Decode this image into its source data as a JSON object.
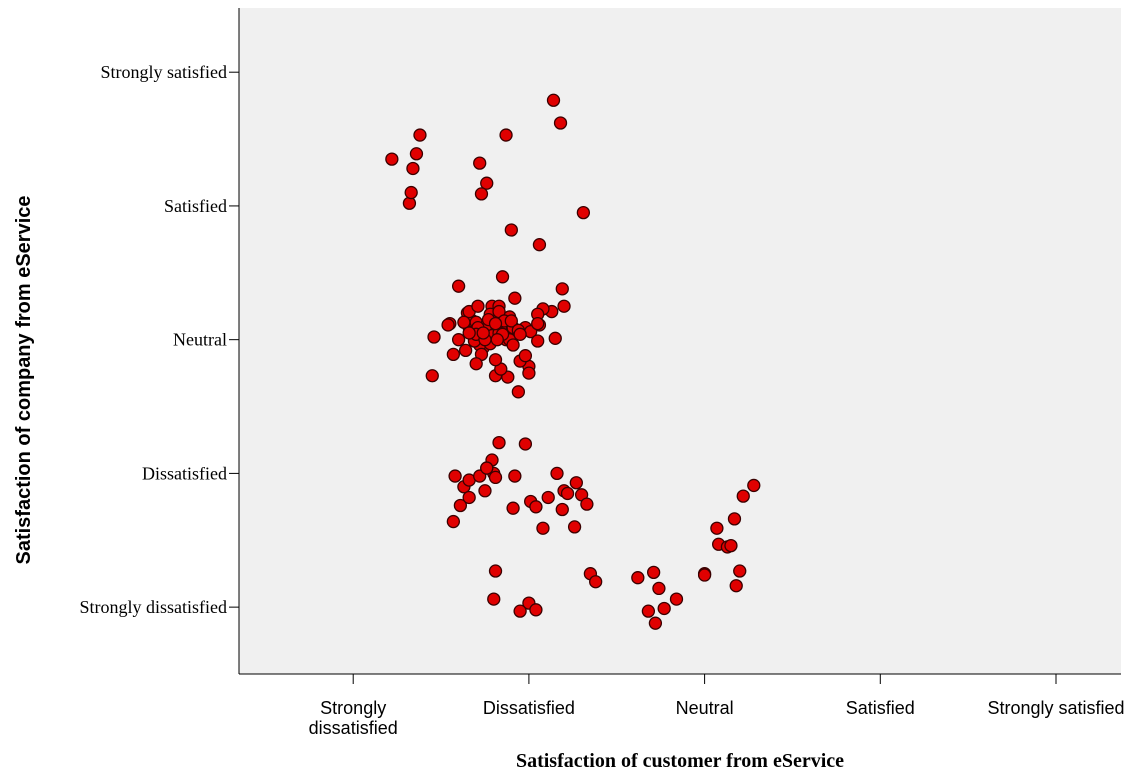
{
  "chart_data": {
    "type": "scatter",
    "title": "",
    "xlabel": "Satisfaction of customer from eService",
    "ylabel": "Satisfaction of company from eService",
    "x_categories": [
      "Strongly dissatisfied",
      "Dissatisfied",
      "Neutral",
      "Satisfied",
      "Strongly satisfied"
    ],
    "x_tick_labels": [
      [
        "Strongly",
        "dissatisfied"
      ],
      [
        "Dissatisfied"
      ],
      [
        "Neutral"
      ],
      [
        "Satisfied"
      ],
      [
        "Strongly satisfied"
      ]
    ],
    "y_categories": [
      "Strongly dissatisfied",
      "Dissatisfied",
      "Neutral",
      "Satisfied",
      "Strongly satisfied"
    ],
    "xlim": [
      0.35,
      5.37
    ],
    "ylim": [
      0.5,
      5.48
    ],
    "grid": false,
    "legend": "none",
    "jitter": true,
    "marker": {
      "color": "#e00000",
      "edge": "#3a0000",
      "shape": "circle"
    },
    "plot_background": "#f0f0f0",
    "points": [
      [
        1.87,
        4.53
      ],
      [
        2.14,
        4.79
      ],
      [
        1.22,
        4.35
      ],
      [
        1.32,
        4.02
      ],
      [
        1.33,
        4.1
      ],
      [
        1.34,
        4.28
      ],
      [
        1.38,
        4.53
      ],
      [
        1.36,
        4.39
      ],
      [
        1.72,
        4.32
      ],
      [
        1.76,
        4.17
      ],
      [
        1.73,
        4.09
      ],
      [
        2.31,
        3.95
      ],
      [
        2.18,
        4.62
      ],
      [
        2.06,
        3.71
      ],
      [
        1.9,
        3.82
      ],
      [
        1.79,
        3.25
      ],
      [
        1.6,
        3.4
      ],
      [
        1.92,
        3.31
      ],
      [
        2.19,
        3.38
      ],
      [
        2.2,
        3.25
      ],
      [
        1.98,
        3.09
      ],
      [
        1.85,
        3.47
      ],
      [
        1.8,
        3.19
      ],
      [
        2.06,
        3.11
      ],
      [
        2.13,
        3.21
      ],
      [
        2.01,
        3.06
      ],
      [
        2.0,
        2.8
      ],
      [
        1.89,
        3.05
      ],
      [
        1.94,
        2.61
      ],
      [
        2.15,
        3.01
      ],
      [
        1.46,
        3.02
      ],
      [
        1.55,
        3.12
      ],
      [
        2.08,
        3.23
      ],
      [
        2.05,
        3.19
      ],
      [
        2.05,
        2.99
      ],
      [
        2.0,
        2.75
      ],
      [
        1.95,
        2.84
      ],
      [
        1.66,
        3.09
      ],
      [
        1.74,
        2.94
      ],
      [
        1.83,
        3.25
      ],
      [
        1.65,
        3.2
      ],
      [
        1.78,
        3.19
      ],
      [
        1.6,
        3.0
      ],
      [
        1.68,
        3.14
      ],
      [
        1.66,
        3.21
      ],
      [
        1.89,
        3.17
      ],
      [
        1.8,
        3.03
      ],
      [
        1.87,
        3.0
      ],
      [
        1.83,
        3.21
      ],
      [
        1.84,
        3.1
      ],
      [
        1.7,
        3.13
      ],
      [
        1.77,
        3.02
      ],
      [
        1.72,
        2.96
      ],
      [
        1.92,
        3.04
      ],
      [
        1.81,
        2.73
      ],
      [
        1.64,
        2.92
      ],
      [
        1.73,
        2.89
      ],
      [
        1.79,
        3.03
      ],
      [
        1.76,
        3.11
      ],
      [
        1.91,
        3.09
      ],
      [
        1.86,
        3.14
      ],
      [
        1.71,
        3.25
      ],
      [
        1.73,
        3.05
      ],
      [
        1.83,
        3.05
      ],
      [
        1.63,
        3.13
      ],
      [
        1.9,
        3.14
      ],
      [
        1.88,
        2.72
      ],
      [
        2.05,
        3.12
      ],
      [
        1.71,
        3.09
      ],
      [
        1.69,
        2.99
      ],
      [
        1.78,
        2.97
      ],
      [
        1.94,
        3.07
      ],
      [
        1.7,
        3.04
      ],
      [
        1.84,
        2.78
      ],
      [
        1.75,
        3.0
      ],
      [
        1.89,
        3.0
      ],
      [
        1.74,
        3.05
      ],
      [
        1.77,
        3.15
      ],
      [
        1.66,
        3.05
      ],
      [
        1.57,
        2.89
      ],
      [
        1.85,
        3.04
      ],
      [
        1.82,
        3.0
      ],
      [
        1.95,
        3.04
      ],
      [
        1.98,
        2.88
      ],
      [
        1.54,
        3.11
      ],
      [
        1.91,
        2.96
      ],
      [
        1.81,
        3.12
      ],
      [
        1.81,
        2.85
      ],
      [
        1.7,
        2.82
      ],
      [
        1.45,
        2.73
      ],
      [
        1.79,
        2.1
      ],
      [
        1.98,
        2.22
      ],
      [
        1.8,
        2.0
      ],
      [
        1.81,
        1.97
      ],
      [
        1.58,
        1.98
      ],
      [
        1.63,
        1.9
      ],
      [
        1.66,
        1.95
      ],
      [
        2.01,
        1.79
      ],
      [
        1.76,
        2.04
      ],
      [
        1.92,
        1.98
      ],
      [
        1.57,
        1.64
      ],
      [
        1.61,
        1.76
      ],
      [
        1.66,
        1.82
      ],
      [
        1.72,
        1.98
      ],
      [
        1.75,
        1.87
      ],
      [
        1.83,
        2.23
      ],
      [
        1.76,
        2.04
      ],
      [
        1.91,
        1.74
      ],
      [
        2.04,
        1.75
      ],
      [
        2.08,
        1.59
      ],
      [
        2.11,
        1.82
      ],
      [
        2.16,
        2.0
      ],
      [
        2.2,
        1.87
      ],
      [
        2.22,
        1.85
      ],
      [
        1.8,
        1.06
      ],
      [
        1.81,
        1.27
      ],
      [
        2.19,
        1.73
      ],
      [
        2.26,
        1.6
      ],
      [
        2.27,
        1.93
      ],
      [
        2.3,
        1.84
      ],
      [
        2.33,
        1.77
      ],
      [
        2.0,
        1.03
      ],
      [
        2.04,
        0.98
      ],
      [
        1.95,
        0.97
      ],
      [
        2.35,
        1.25
      ],
      [
        2.38,
        1.19
      ],
      [
        2.62,
        1.22
      ],
      [
        2.68,
        0.97
      ],
      [
        2.71,
        1.26
      ],
      [
        2.72,
        0.88
      ],
      [
        2.74,
        1.14
      ],
      [
        2.77,
        0.99
      ],
      [
        2.84,
        1.06
      ],
      [
        3.0,
        1.25
      ],
      [
        3.0,
        1.24
      ],
      [
        3.07,
        1.59
      ],
      [
        3.08,
        1.47
      ],
      [
        3.13,
        1.45
      ],
      [
        3.15,
        1.46
      ],
      [
        3.18,
        1.16
      ],
      [
        3.2,
        1.27
      ],
      [
        3.22,
        1.83
      ],
      [
        3.28,
        1.91
      ],
      [
        3.17,
        1.66
      ]
    ]
  }
}
